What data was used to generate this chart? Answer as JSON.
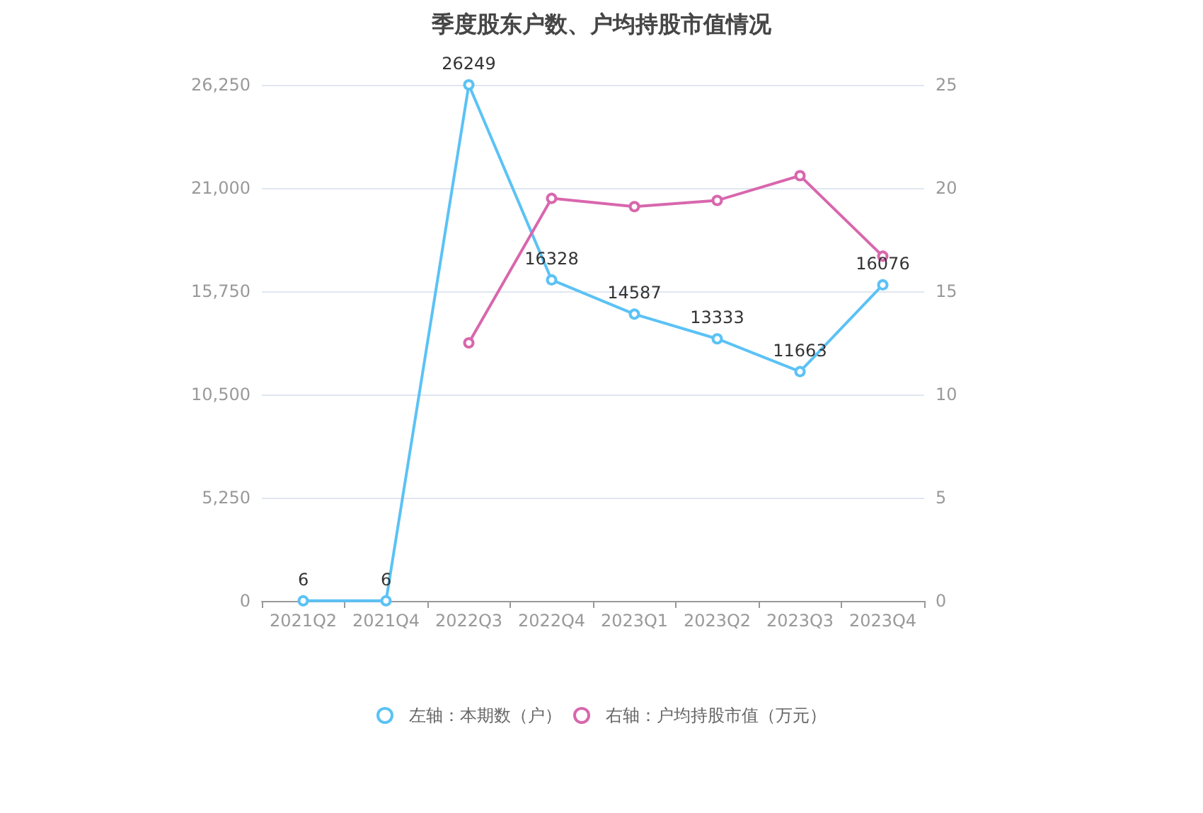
{
  "chart_data": {
    "type": "line",
    "title": "季度股东户数、户均持股市值情况",
    "categories": [
      "2021Q2",
      "2021Q4",
      "2022Q3",
      "2022Q4",
      "2023Q1",
      "2023Q2",
      "2023Q3",
      "2023Q4"
    ],
    "series": [
      {
        "name": "左轴：本期数（户）",
        "color": "#5bc2f5",
        "values": [
          6,
          6,
          26249,
          16328,
          14587,
          13333,
          11663,
          16076
        ],
        "value_labels": [
          "6",
          "6",
          "26249",
          "16328",
          "14587",
          "13333",
          "11663",
          "16076"
        ]
      },
      {
        "name": "右轴：户均持股市值（万元）",
        "color": "#d867ad",
        "axis": "y2",
        "values": [
          null,
          null,
          12.5,
          19.5,
          19.1,
          19.4,
          20.6,
          16.7
        ]
      }
    ],
    "ylim": [
      0,
      26250
    ],
    "yticks": [
      0,
      {
        "value": 5250,
        "label": "5,250"
      },
      {
        "value": 10500,
        "label": "10,500"
      },
      {
        "value": 15750,
        "label": "15,750"
      },
      {
        "value": 21000,
        "label": "21,000"
      },
      {
        "value": 26250,
        "label": "26,250"
      }
    ],
    "y2lim": [
      0,
      25
    ],
    "y2ticks": [
      0,
      5,
      10,
      15,
      20,
      25
    ],
    "grid": "y",
    "legend": "bottom",
    "marker": "circle",
    "line_style": "solid"
  }
}
